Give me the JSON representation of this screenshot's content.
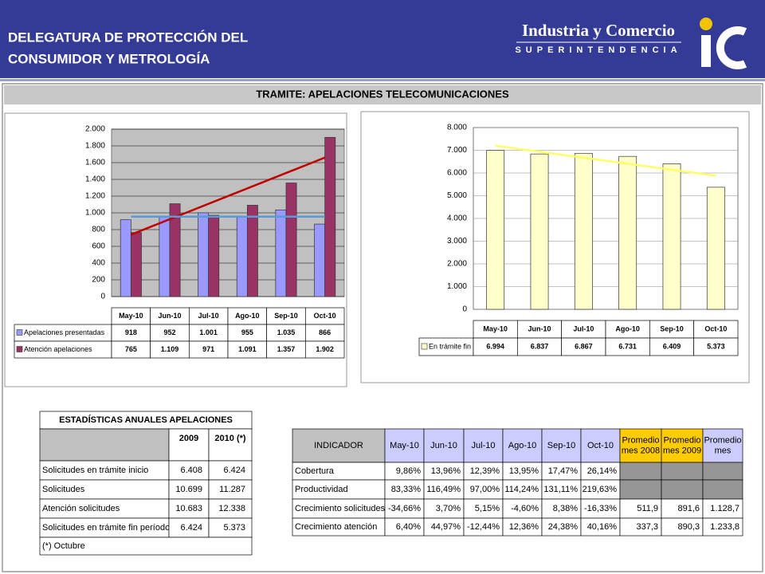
{
  "header": {
    "title_lines": [
      "DELEGATURA DE PROTECCIÓN DEL",
      "CONSUMIDOR Y METROLOGÍA"
    ],
    "logo_name": "Industria y Comercio",
    "logo_sub": "SUPERINTENDENCIA"
  },
  "panel_title": "TRAMITE: APELACIONES TELECOMUNICACIONES",
  "chart_data": [
    {
      "type": "bar",
      "categories": [
        "May-10",
        "Jun-10",
        "Jul-10",
        "Ago-10",
        "Sep-10",
        "Oct-10"
      ],
      "series": [
        {
          "name": "Apelaciones presentadas",
          "color": "#9999ff",
          "values": [
            918,
            952,
            1001,
            955,
            1035,
            866
          ],
          "value_labels": [
            "918",
            "952",
            "1.001",
            "955",
            "1.035",
            "866"
          ]
        },
        {
          "name": "Atención apelaciones",
          "color": "#993366",
          "values": [
            765,
            1109,
            971,
            1091,
            1357,
            1902
          ],
          "value_labels": [
            "765",
            "1.109",
            "971",
            "1.091",
            "1.357",
            "1.902"
          ]
        }
      ],
      "trend_lines": [
        {
          "color": "#c00000",
          "values": [
            740,
            1660
          ]
        },
        {
          "color": "#5b9bd5",
          "values": [
            955,
            955
          ]
        }
      ],
      "ylim": [
        0,
        2000
      ],
      "yticks": [
        0,
        200,
        400,
        600,
        800,
        {
          "value": 1000,
          "label": "1.000"
        },
        {
          "value": 1200,
          "label": "1.200"
        },
        {
          "value": 1400,
          "label": "1.400"
        },
        {
          "value": 1600,
          "label": "1.600"
        },
        {
          "value": 1800,
          "label": "1.800"
        },
        {
          "value": 2000,
          "label": "2.000"
        }
      ],
      "grid": true
    },
    {
      "type": "bar",
      "categories": [
        "May-10",
        "Jun-10",
        "Jul-10",
        "Ago-10",
        "Sep-10",
        "Oct-10"
      ],
      "series": [
        {
          "name": "En trámite fin",
          "color": "#ffffcc",
          "values": [
            6994,
            6837,
            6867,
            6731,
            6409,
            5373
          ],
          "value_labels": [
            "6.994",
            "6.837",
            "6.867",
            "6.731",
            "6.409",
            "5.373"
          ]
        }
      ],
      "trend_lines": [
        {
          "color": "#ffff66",
          "values": [
            7200,
            5880
          ]
        }
      ],
      "ylim": [
        0,
        8000
      ],
      "yticks": [
        0,
        {
          "value": 1000,
          "label": "1.000"
        },
        {
          "value": 2000,
          "label": "2.000"
        },
        {
          "value": 3000,
          "label": "3.000"
        },
        {
          "value": 4000,
          "label": "4.000"
        },
        {
          "value": 5000,
          "label": "5.000"
        },
        {
          "value": 6000,
          "label": "6.000"
        },
        {
          "value": 7000,
          "label": "7.000"
        },
        {
          "value": 8000,
          "label": "8.000"
        }
      ],
      "grid": true
    }
  ],
  "annual_table": {
    "title": "ESTADÍSTICAS ANUALES APELACIONES",
    "columns": [
      "2009",
      "2010 (*)"
    ],
    "rows": [
      {
        "label": "Solicitudes en trámite inicio",
        "cells": [
          "6.408",
          "6.424"
        ]
      },
      {
        "label": "Solicitudes",
        "cells": [
          "10.699",
          "11.287"
        ]
      },
      {
        "label": "Atención solicitudes",
        "cells": [
          "10.683",
          "12.338"
        ]
      },
      {
        "label": "Solicitudes en trámite fin período",
        "cells": [
          "6.424",
          "5.373"
        ]
      }
    ],
    "footnote": "(*) Octubre"
  },
  "indicator_table": {
    "columns": [
      "INDICADOR",
      "May-10",
      "Jun-10",
      "Jul-10",
      "Ago-10",
      "Sep-10",
      "Oct-10",
      "Promedio mes 2008",
      "Promedio mes 2009",
      "Promedio mes"
    ],
    "rows": [
      {
        "label": "Cobertura",
        "cells": [
          "9,86%",
          "13,96%",
          "12,39%",
          "13,95%",
          "17,47%",
          "26,14%"
        ]
      },
      {
        "label": "Productividad",
        "cells": [
          "83,33%",
          "116,49%",
          "97,00%",
          "114,24%",
          "131,11%",
          "219,63%"
        ]
      },
      {
        "label": "Crecimiento solicitudes",
        "cells": [
          "-34,66%",
          "3,70%",
          "5,15%",
          "-4,60%",
          "8,38%",
          "-16,33%",
          "511,9",
          "891,6",
          "1.128,7"
        ]
      },
      {
        "label": "Crecimiento atención",
        "cells": [
          "6,40%",
          "44,97%",
          "-12,44%",
          "12,36%",
          "24,38%",
          "40,16%",
          "337,3",
          "890,3",
          "1.233,8"
        ]
      }
    ]
  }
}
